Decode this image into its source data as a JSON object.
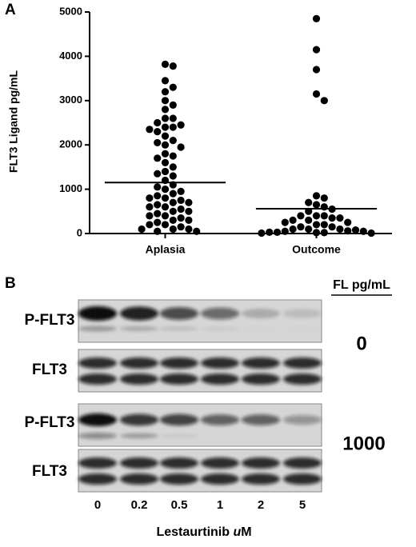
{
  "chart_data": {
    "type": "dotplot",
    "panel_label": "A",
    "y_label": "FLT3 Ligand pg/mL",
    "categories": [
      "Aplasia",
      "Outcome"
    ],
    "values": [
      [
        3820,
        3780,
        3450,
        3300,
        3200,
        3000,
        2900,
        2800,
        2600,
        2600,
        2500,
        2450,
        2400,
        2400,
        2350,
        2300,
        2200,
        2100,
        2050,
        2000,
        1950,
        1800,
        1750,
        1700,
        1600,
        1500,
        1400,
        1350,
        1300,
        1200,
        1100,
        1050,
        1000,
        950,
        900,
        850,
        800,
        800,
        750,
        700,
        700,
        650,
        600,
        600,
        550,
        500,
        500,
        450,
        400,
        400,
        350,
        300,
        300,
        250,
        200,
        200,
        150,
        100,
        100,
        100,
        50,
        50
      ],
      [
        4850,
        4150,
        3700,
        3150,
        3000,
        850,
        800,
        700,
        650,
        600,
        550,
        500,
        400,
        400,
        400,
        350,
        350,
        300,
        300,
        250,
        250,
        200,
        200,
        150,
        150,
        100,
        100,
        100,
        80,
        60,
        50,
        50,
        30,
        30,
        20,
        20,
        10,
        10
      ]
    ],
    "center_lines": [
      1150,
      560
    ],
    "color": "#000000",
    "ylim": [
      0,
      5000
    ],
    "yticks": [
      0,
      1000,
      2000,
      3000,
      4000,
      5000
    ]
  },
  "panel_b": {
    "label": "B",
    "header": "FL pg/mL",
    "row_labels": [
      "P-FLT3",
      "FLT3",
      "P-FLT3",
      "FLT3"
    ],
    "doses": [
      0,
      1000
    ],
    "lanes": [
      0,
      0.2,
      0.5,
      1,
      2,
      5
    ],
    "x_label_prefix": "Lestaurtinib ",
    "x_label_italic": "u",
    "x_label_suffix": "M"
  }
}
